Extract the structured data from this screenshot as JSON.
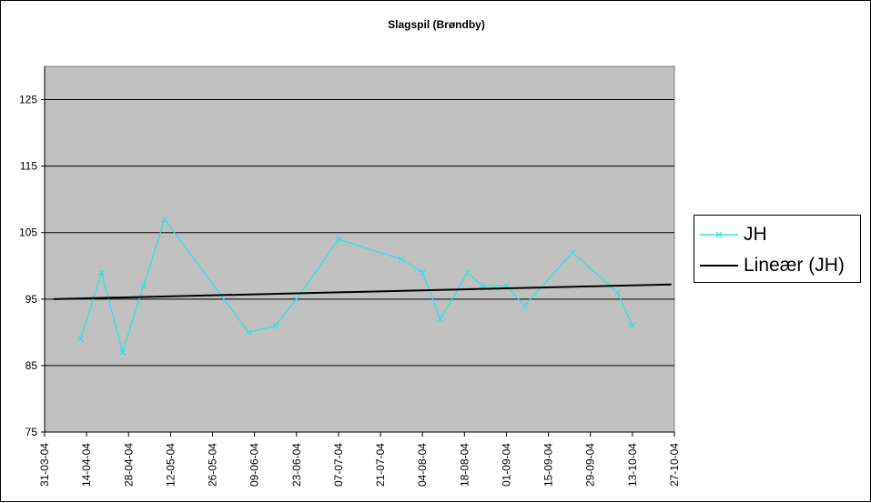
{
  "chart_data": {
    "type": "line",
    "title": "Slagspil (Brøndby)",
    "xlabel": "",
    "ylabel": "",
    "ylim": [
      75,
      130
    ],
    "yticks": [
      75,
      85,
      95,
      105,
      115,
      125
    ],
    "x_ticks": [
      "31-03-04",
      "14-04-04",
      "28-04-04",
      "12-05-04",
      "26-05-04",
      "09-06-04",
      "23-06-04",
      "07-07-04",
      "21-07-04",
      "04-08-04",
      "18-08-04",
      "01-09-04",
      "15-09-04",
      "29-09-04",
      "13-10-04",
      "27-10-04"
    ],
    "grid": "horizontal",
    "legend_position": "right",
    "plot_background": "#C0C0C0",
    "series": [
      {
        "name": "JH",
        "color": "#33E0E0",
        "marker": "x",
        "points": [
          {
            "x": "2004-04-12",
            "y": 89
          },
          {
            "x": "2004-04-19",
            "y": 99
          },
          {
            "x": "2004-04-26",
            "y": 87
          },
          {
            "x": "2004-05-03",
            "y": 97
          },
          {
            "x": "2004-05-10",
            "y": 107
          },
          {
            "x": "2004-06-07",
            "y": 90
          },
          {
            "x": "2004-06-16",
            "y": 91
          },
          {
            "x": "2004-06-23",
            "y": 95
          },
          {
            "x": "2004-07-07",
            "y": 104
          },
          {
            "x": "2004-07-28",
            "y": 101
          },
          {
            "x": "2004-08-04",
            "y": 99
          },
          {
            "x": "2004-08-10",
            "y": 92
          },
          {
            "x": "2004-08-19",
            "y": 99
          },
          {
            "x": "2004-08-24",
            "y": 97
          },
          {
            "x": "2004-09-01",
            "y": 97
          },
          {
            "x": "2004-09-07",
            "y": 94
          },
          {
            "x": "2004-09-23",
            "y": 102
          },
          {
            "x": "2004-10-08",
            "y": 96
          },
          {
            "x": "2004-10-13",
            "y": 91
          }
        ]
      },
      {
        "name": "Lineær (JH)",
        "color": "#000000",
        "marker": "none",
        "points": [
          {
            "x": "2004-04-03",
            "y": 95.0
          },
          {
            "x": "2004-10-26",
            "y": 97.2
          }
        ]
      }
    ]
  }
}
